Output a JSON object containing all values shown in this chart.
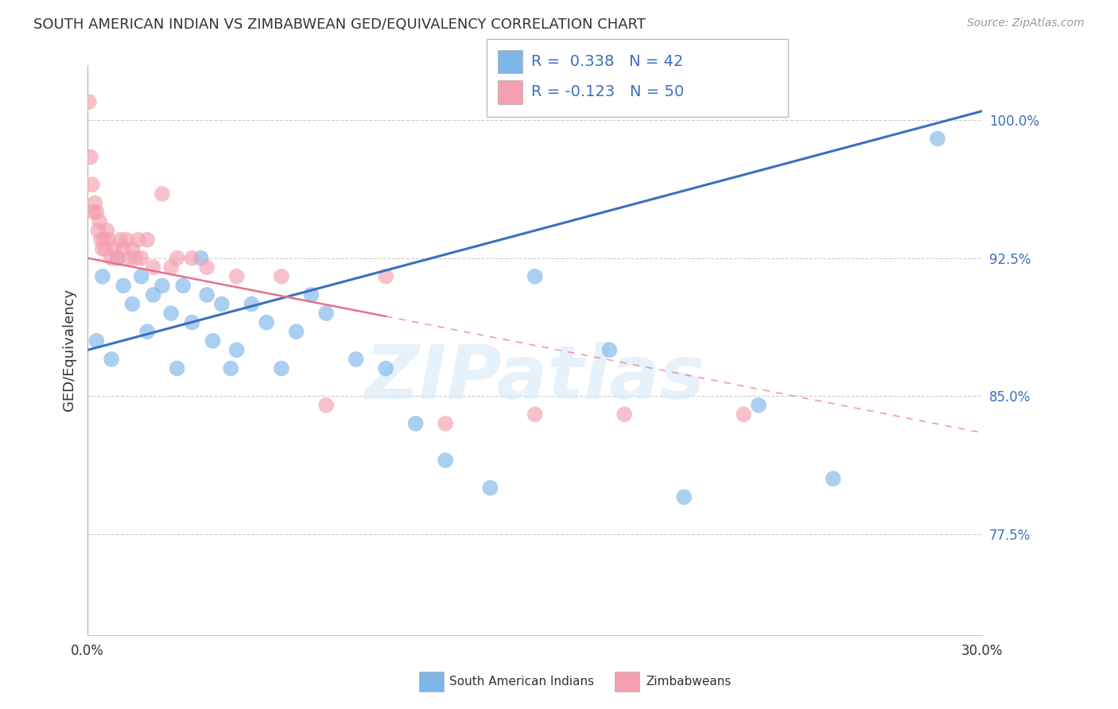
{
  "title": "SOUTH AMERICAN INDIAN VS ZIMBABWEAN GED/EQUIVALENCY CORRELATION CHART",
  "source": "Source: ZipAtlas.com",
  "ylabel": "GED/Equivalency",
  "yticks": [
    77.5,
    85.0,
    92.5,
    100.0
  ],
  "ytick_labels": [
    "77.5%",
    "85.0%",
    "92.5%",
    "100.0%"
  ],
  "xmin": 0.0,
  "xmax": 30.0,
  "ymin": 72.0,
  "ymax": 103.0,
  "legend_label1": "South American Indians",
  "legend_label2": "Zimbabweans",
  "blue_color": "#7EB6E8",
  "pink_color": "#F4A0B0",
  "blue_line_color": "#3B6FBF",
  "pink_line_color": "#E8708A",
  "watermark": "ZIPatlas",
  "blue_line_x0": 0.0,
  "blue_line_y0": 87.5,
  "blue_line_x1": 30.0,
  "blue_line_y1": 100.5,
  "pink_line_x0": 0.0,
  "pink_line_y0": 92.5,
  "pink_line_x1": 30.0,
  "pink_line_y1": 83.0,
  "pink_solid_end_x": 10.0,
  "blue_x": [
    0.3,
    0.5,
    0.8,
    1.0,
    1.2,
    1.5,
    1.8,
    2.0,
    2.2,
    2.5,
    2.8,
    3.0,
    3.2,
    3.5,
    3.8,
    4.0,
    4.2,
    4.5,
    4.8,
    5.0,
    5.5,
    6.0,
    6.5,
    7.0,
    7.5,
    8.0,
    9.0,
    10.0,
    11.0,
    12.0,
    13.5,
    15.0,
    17.5,
    20.0,
    22.5,
    25.0,
    28.5
  ],
  "blue_y": [
    88.0,
    91.5,
    87.0,
    92.5,
    91.0,
    90.0,
    91.5,
    88.5,
    90.5,
    91.0,
    89.5,
    86.5,
    91.0,
    89.0,
    92.5,
    90.5,
    88.0,
    90.0,
    86.5,
    87.5,
    90.0,
    89.0,
    86.5,
    88.5,
    90.5,
    89.5,
    87.0,
    86.5,
    83.5,
    81.5,
    80.0,
    91.5,
    87.5,
    79.5,
    84.5,
    80.5,
    99.0
  ],
  "pink_x": [
    0.05,
    0.1,
    0.15,
    0.2,
    0.25,
    0.3,
    0.35,
    0.4,
    0.45,
    0.5,
    0.55,
    0.6,
    0.65,
    0.7,
    0.8,
    0.9,
    1.0,
    1.1,
    1.2,
    1.3,
    1.4,
    1.5,
    1.6,
    1.7,
    1.8,
    2.0,
    2.2,
    2.5,
    2.8,
    3.0,
    3.5,
    4.0,
    5.0,
    6.5,
    8.0,
    10.0,
    12.0,
    15.0,
    18.0,
    22.0
  ],
  "pink_y": [
    101.0,
    98.0,
    96.5,
    95.0,
    95.5,
    95.0,
    94.0,
    94.5,
    93.5,
    93.0,
    93.5,
    93.0,
    94.0,
    93.5,
    92.5,
    93.0,
    92.5,
    93.5,
    93.0,
    93.5,
    92.5,
    93.0,
    92.5,
    93.5,
    92.5,
    93.5,
    92.0,
    96.0,
    92.0,
    92.5,
    92.5,
    92.0,
    91.5,
    91.5,
    84.5,
    91.5,
    83.5,
    84.0,
    84.0,
    84.0
  ]
}
